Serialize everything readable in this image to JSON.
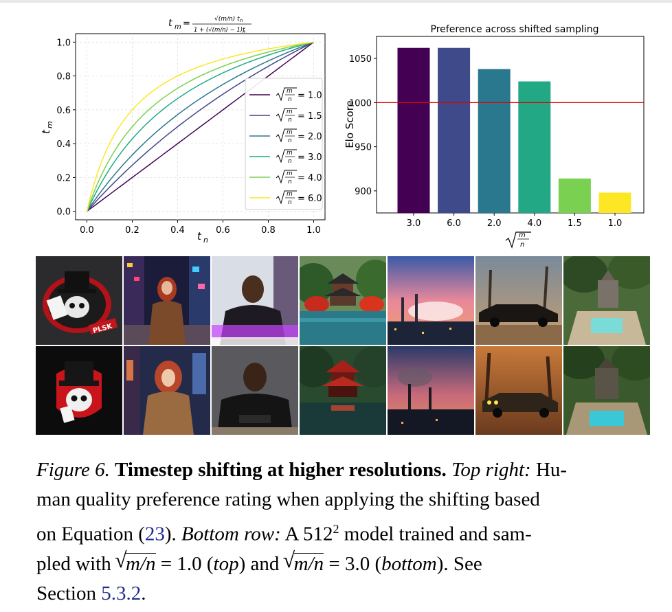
{
  "chart_data": [
    {
      "type": "line",
      "title": "t_m = √(m/n)·t_n / (1 + (√(m/n) − 1)·t_n)",
      "title_parts": {
        "lhs": "t",
        "lhs_sub": "m",
        "eq": "=",
        "num": "√(m/n) t",
        "num_sub": "n",
        "den": "1 + (√(m/n) − 1)t",
        "den_sub": "n"
      },
      "xlabel": "t",
      "xlabel_sub": "n",
      "ylabel": "t",
      "ylabel_sub": "m",
      "xlim": [
        -0.05,
        1.05
      ],
      "ylim": [
        -0.05,
        1.05
      ],
      "xticks": [
        "0.0",
        "0.2",
        "0.4",
        "0.6",
        "0.8",
        "1.0"
      ],
      "yticks": [
        "0.0",
        "0.2",
        "0.4",
        "0.6",
        "0.8",
        "1.0"
      ],
      "x_tick_values": [
        0,
        0.2,
        0.4,
        0.6,
        0.8,
        1.0
      ],
      "y_tick_values": [
        0,
        0.2,
        0.4,
        0.6,
        0.8,
        1.0
      ],
      "grid": true,
      "legend_position": "lower-right",
      "legend_frac": "m/n",
      "series": [
        {
          "name": "= 1.0",
          "shift": 1.0,
          "color": "#440154"
        },
        {
          "name": "= 1.5",
          "shift": 1.5,
          "color": "#414487"
        },
        {
          "name": "= 2.0",
          "shift": 2.0,
          "color": "#2a788e"
        },
        {
          "name": "= 3.0",
          "shift": 3.0,
          "color": "#22a884"
        },
        {
          "name": "= 4.0",
          "shift": 4.0,
          "color": "#7ad151"
        },
        {
          "name": "= 6.0",
          "shift": 6.0,
          "color": "#fde725"
        }
      ]
    },
    {
      "type": "bar",
      "title": "Preference across shifted sampling",
      "ylabel": "Elo Score",
      "xlabel_frac": "m/n",
      "categories": [
        "3.0",
        "6.0",
        "2.0",
        "4.0",
        "1.5",
        "1.0"
      ],
      "values": [
        1062,
        1062,
        1038,
        1024,
        914,
        898
      ],
      "colors": [
        "#440154",
        "#3e4a89",
        "#2a788e",
        "#22a884",
        "#7ad151",
        "#fde725"
      ],
      "ylim": [
        875,
        1075
      ],
      "yticks": [
        "900",
        "950",
        "1000",
        "1050"
      ],
      "y_tick_values": [
        900,
        950,
        1000,
        1050
      ],
      "reference_line": {
        "value": 1000,
        "color": "#e00000"
      }
    }
  ],
  "image_grid": {
    "top_row_label": "√(m/n) = 1.0",
    "bottom_row_label": "√(m/n) = 3.0",
    "subjects": [
      "skull logo with top hat",
      "woman in city at night",
      "man in leather jacket",
      "pagoda over water",
      "industrial skyline at sunset",
      "vintage car in misty forest",
      "temple ruins with pool"
    ]
  },
  "caption": {
    "fig": "Figure 6.",
    "bold": "Timestep shifting at higher resolutions.",
    "topright_label": "Top right:",
    "l1_tail": "Hu-",
    "l2": "man quality preference rating when applying the shifting based",
    "l3_a": "on Equation",
    "l3_ref": "23",
    "l3_b": "Bottom row:",
    "l3_c": "A",
    "l3_num": "512",
    "l3_sup": "2",
    "l3_d": "model trained and sam-",
    "l4_a": "pled with",
    "l4_eq1": "= 1.0",
    "l4_top": "top",
    "l4_and": "and",
    "l4_eq2": "= 3.0",
    "l4_bottom": "bottom",
    "l4_see": "See",
    "l5_a": "Section",
    "l5_ref": "5.3.2",
    "math_mn": "m/n"
  }
}
